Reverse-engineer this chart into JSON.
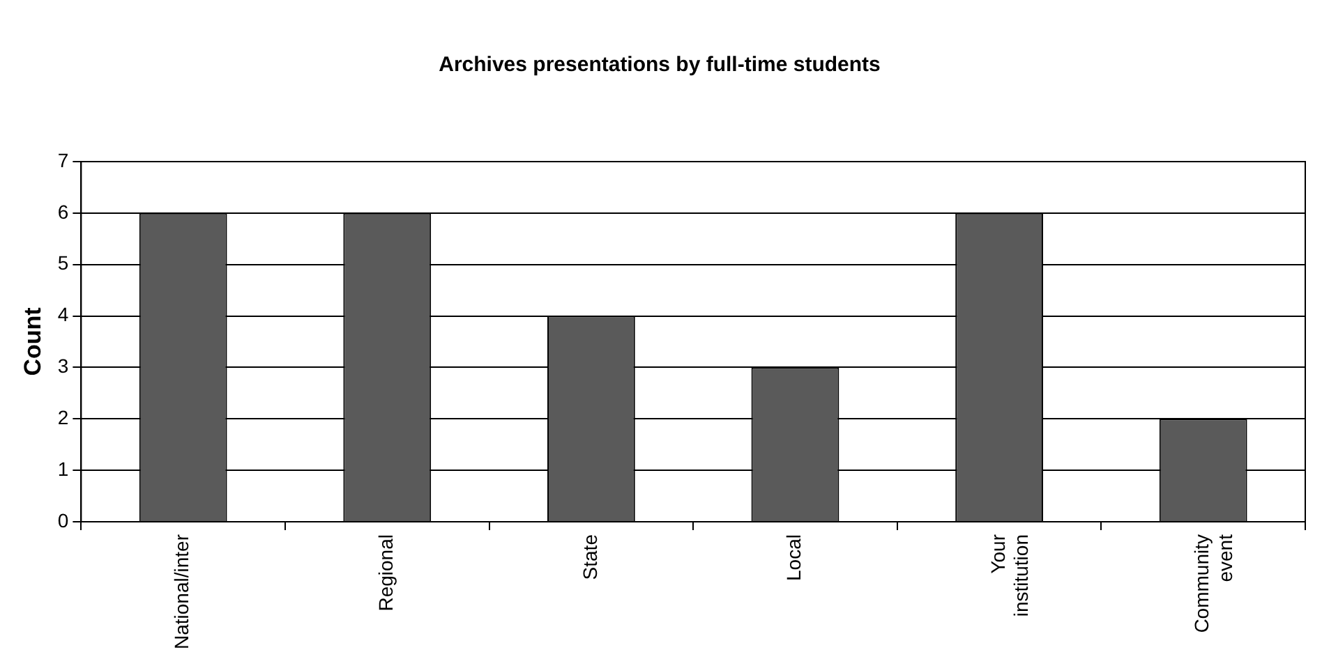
{
  "chart_data": {
    "type": "bar",
    "title": "Archives presentations by full-time students",
    "ylabel": "Count",
    "categories": [
      "National/inter",
      "Regional",
      "State",
      "Local",
      "Your institution",
      "Community event"
    ],
    "values": [
      6,
      6,
      4,
      3,
      6,
      2
    ],
    "color": "#5a5a5a",
    "ylim": [
      0,
      7
    ],
    "yticks": [
      0,
      1,
      2,
      3,
      4,
      5,
      6,
      7
    ],
    "grid": "y"
  }
}
